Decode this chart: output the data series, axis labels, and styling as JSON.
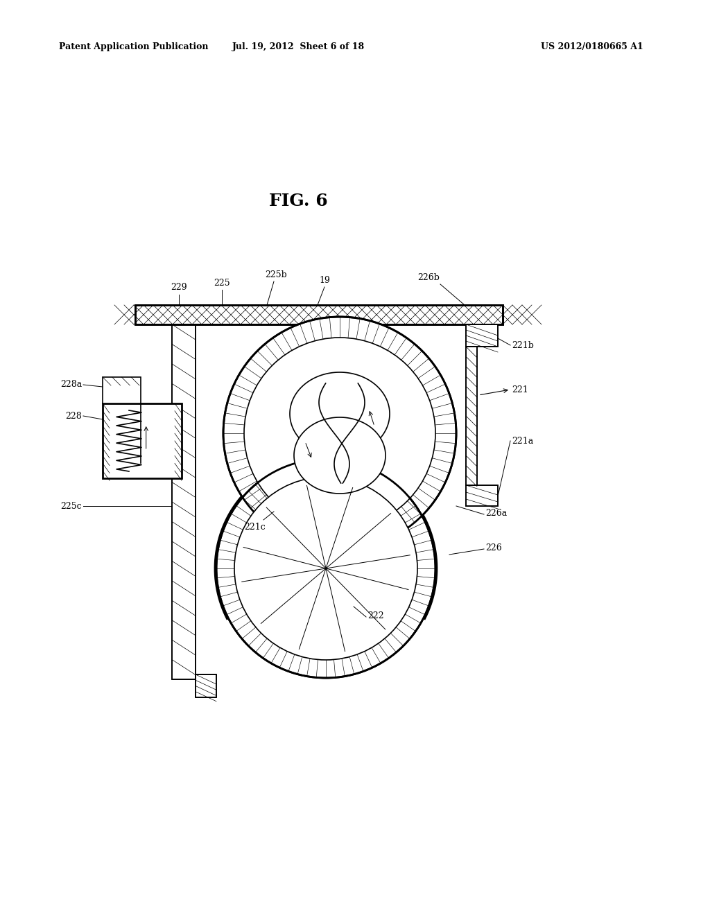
{
  "background_color": "#ffffff",
  "header_left": "Patent Application Publication",
  "header_mid": "Jul. 19, 2012  Sheet 6 of 18",
  "header_right": "US 2012/0180665 A1",
  "fig_label": "FIG. 6",
  "label_fontsize": 9,
  "header_fontsize": 9,
  "fig_fontsize": 18
}
